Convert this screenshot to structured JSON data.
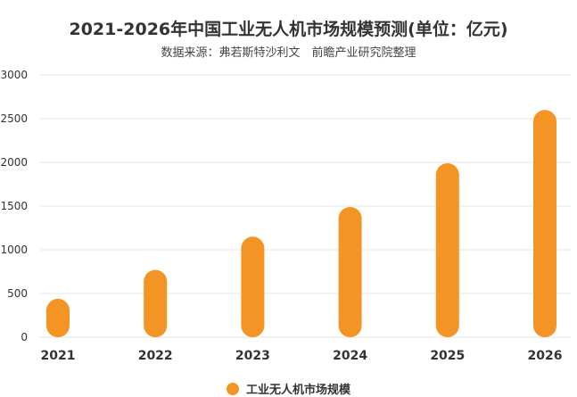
{
  "header": {
    "title": "2021-2026年中国工业无人机市场规模预测(单位：亿元)",
    "subtitle": "数据来源：弗若斯特沙利文　前瞻产业研究院整理"
  },
  "colors": {
    "bar": "#F39425",
    "grid": "#E6E6E6",
    "tick_text": "#333333"
  },
  "chart_data": {
    "type": "bar",
    "title": "2021-2026年中国工业无人机市场规模预测(单位：亿元)",
    "subtitle": "数据来源：弗若斯特沙利文　前瞻产业研究院整理",
    "categories": [
      "2021",
      "2022",
      "2023",
      "2024",
      "2025",
      "2026"
    ],
    "series": [
      {
        "name": "工业无人机市场规模",
        "values": [
          440,
          770,
          1150,
          1490,
          1990,
          2600
        ]
      }
    ],
    "ylim": [
      0,
      3000
    ],
    "yticks": [
      0,
      500,
      1000,
      1500,
      2000,
      2500,
      3000
    ],
    "xlabel": "",
    "ylabel": "",
    "grid": true,
    "legend": "bottom-center"
  }
}
